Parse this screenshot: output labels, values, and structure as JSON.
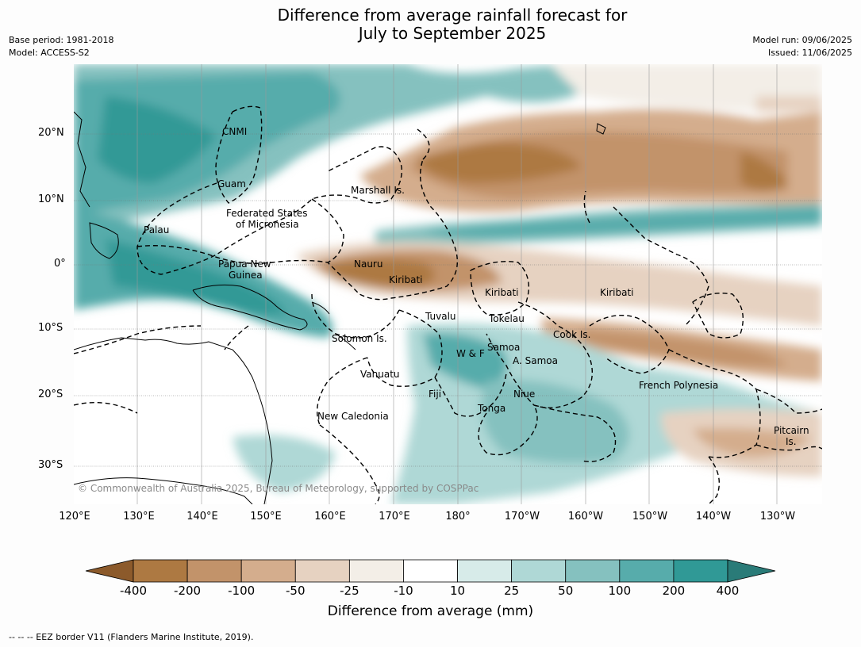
{
  "title_line1": "Difference from average rainfall forecast for",
  "title_line2": "July to September 2025",
  "meta_left": {
    "base_period": "Base period: 1981-2018",
    "model": "Model: ACCESS-S2"
  },
  "meta_right": {
    "model_run": "Model run: 09/06/2025",
    "issued": "Issued: 11/06/2025"
  },
  "lat_labels": [
    "20°N",
    "10°N",
    "0°",
    "10°S",
    "20°S",
    "30°S"
  ],
  "lon_labels": [
    "120°E",
    "130°E",
    "140°E",
    "150°E",
    "160°E",
    "170°E",
    "180°",
    "170°W",
    "160°W",
    "150°W",
    "140°W",
    "130°W"
  ],
  "places": [
    "CNMI",
    "Guam",
    "Marshall Is.",
    "Federated States",
    "of Micronesia",
    "Palau",
    "Papua New",
    "Guinea",
    "Nauru",
    "Kiribati",
    "Kiribati",
    "Kiribati",
    "Tuvalu",
    "Tokelau",
    "Solomon Is.",
    "W & F",
    "Samoa",
    "A. Samoa",
    "Cook Is.",
    "Vanuatu",
    "Fiji",
    "Niue",
    "Tonga",
    "French Polynesia",
    "New Caledonia",
    "Pitcairn",
    "Is."
  ],
  "copyright": "© Commonwealth of Australia 2025, Bureau of Meteorology, supported by COSPPac",
  "colorbar": {
    "ticks": [
      "-400",
      "-200",
      "-100",
      "-50",
      "-25",
      "-10",
      "10",
      "25",
      "50",
      "100",
      "200",
      "400"
    ],
    "colors": [
      "#8c5a2b",
      "#ad7942",
      "#c2936a",
      "#d4ad8d",
      "#e6d2c1",
      "#f3eee7",
      "#ffffff",
      "#d7ebe9",
      "#afd8d6",
      "#85c1bf",
      "#57acab",
      "#309996",
      "#2a7b78"
    ],
    "label": "Difference from average (mm)"
  },
  "footer": "--  --  -- EEZ border V11 (Flanders Marine Institute, 2019)."
}
